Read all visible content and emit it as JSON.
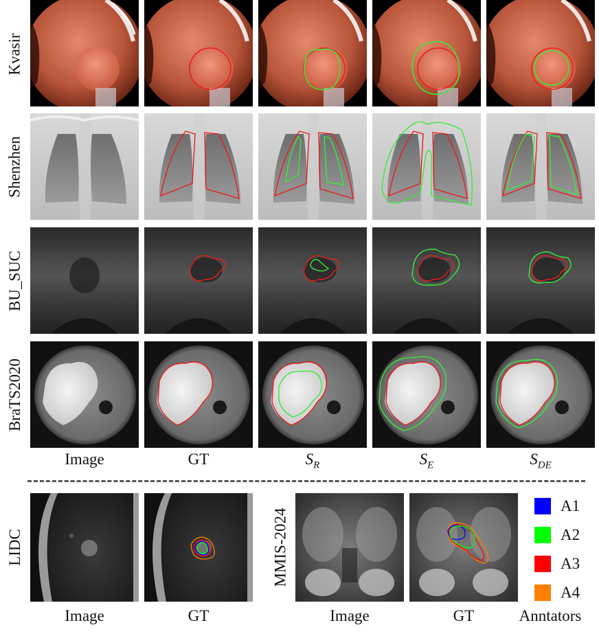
{
  "rows": [
    {
      "label": "Kvasir"
    },
    {
      "label": "Shenzhen"
    },
    {
      "label": "BU_SUC"
    },
    {
      "label": "BraTS2020"
    }
  ],
  "columns": {
    "image": "Image",
    "gt": "GT",
    "sr": {
      "main": "S",
      "sub": "R"
    },
    "se": {
      "main": "S",
      "sub": "E"
    },
    "sde": {
      "main": "S",
      "sub": "DE"
    }
  },
  "bottom": {
    "lidc": {
      "label": "LIDC",
      "image": "Image",
      "gt": "GT"
    },
    "mmis": {
      "label": "MMIS-2024",
      "image": "Image",
      "gt": "GT"
    },
    "annotators_label": "Anntators",
    "legend": [
      {
        "name": "A1",
        "color": "#0000ff"
      },
      {
        "name": "A2",
        "color": "#00ff00"
      },
      {
        "name": "A3",
        "color": "#ff0000"
      },
      {
        "name": "A4",
        "color": "#ff8000"
      }
    ]
  },
  "colors": {
    "gt": "#e81e1e",
    "prediction": "#3de83d"
  }
}
